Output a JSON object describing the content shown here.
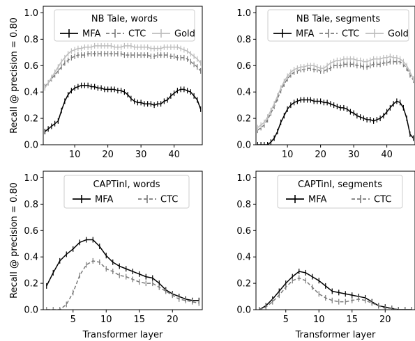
{
  "chart_data": [
    {
      "type": "line",
      "title": "NB Tale, words",
      "xlabel": "",
      "ylabel": "Recall @ precision = 0.80",
      "xlim": [
        0.5,
        48.5
      ],
      "ylim": [
        0,
        1.05
      ],
      "xticks": [
        "10",
        "20",
        "30",
        "40"
      ],
      "yticks": [
        "0.0",
        "0.2",
        "0.4",
        "0.6",
        "0.8",
        "1.0"
      ],
      "legend": "top-left, 3 columns",
      "x": [
        1,
        2,
        3,
        4,
        5,
        6,
        7,
        8,
        9,
        10,
        11,
        12,
        13,
        14,
        15,
        16,
        17,
        18,
        19,
        20,
        21,
        22,
        23,
        24,
        25,
        26,
        27,
        28,
        29,
        30,
        31,
        32,
        33,
        34,
        35,
        36,
        37,
        38,
        39,
        40,
        41,
        42,
        43,
        44,
        45,
        46,
        47,
        48
      ],
      "series": [
        {
          "name": "MFA",
          "color": "#000000",
          "dash": "solid",
          "values": [
            0.1,
            0.12,
            0.14,
            0.16,
            0.18,
            0.26,
            0.33,
            0.38,
            0.41,
            0.43,
            0.44,
            0.45,
            0.45,
            0.45,
            0.44,
            0.44,
            0.43,
            0.43,
            0.42,
            0.42,
            0.42,
            0.42,
            0.41,
            0.41,
            0.4,
            0.38,
            0.35,
            0.33,
            0.32,
            0.32,
            0.31,
            0.31,
            0.31,
            0.3,
            0.31,
            0.31,
            0.33,
            0.34,
            0.37,
            0.39,
            0.41,
            0.42,
            0.42,
            0.41,
            0.4,
            0.37,
            0.34,
            0.27
          ]
        },
        {
          "name": "CTC",
          "color": "#7a7a7a",
          "dash": "dashed",
          "values": [
            0.44,
            0.47,
            0.5,
            0.53,
            0.56,
            0.59,
            0.62,
            0.64,
            0.66,
            0.67,
            0.68,
            0.68,
            0.68,
            0.69,
            0.69,
            0.69,
            0.69,
            0.69,
            0.69,
            0.69,
            0.69,
            0.69,
            0.69,
            0.69,
            0.68,
            0.68,
            0.68,
            0.68,
            0.68,
            0.68,
            0.68,
            0.68,
            0.67,
            0.67,
            0.68,
            0.68,
            0.68,
            0.68,
            0.67,
            0.67,
            0.66,
            0.66,
            0.66,
            0.65,
            0.63,
            0.61,
            0.59,
            0.56
          ]
        },
        {
          "name": "Gold",
          "color": "#bdbdbd",
          "dash": "solid",
          "values": [
            0.43,
            0.47,
            0.51,
            0.55,
            0.59,
            0.63,
            0.66,
            0.69,
            0.71,
            0.72,
            0.73,
            0.73,
            0.74,
            0.74,
            0.74,
            0.75,
            0.75,
            0.75,
            0.75,
            0.75,
            0.75,
            0.74,
            0.74,
            0.74,
            0.75,
            0.75,
            0.75,
            0.74,
            0.74,
            0.74,
            0.74,
            0.74,
            0.73,
            0.73,
            0.73,
            0.73,
            0.74,
            0.74,
            0.74,
            0.74,
            0.74,
            0.73,
            0.72,
            0.71,
            0.69,
            0.67,
            0.65,
            0.62
          ]
        }
      ]
    },
    {
      "type": "line",
      "title": "NB Tale, segments",
      "xlabel": "",
      "ylabel": "",
      "xlim": [
        0.5,
        48.5
      ],
      "ylim": [
        0,
        1.05
      ],
      "xticks": [
        "10",
        "20",
        "30",
        "40"
      ],
      "yticks": [
        "0.0",
        "0.2",
        "0.4",
        "0.6",
        "0.8",
        "1.0"
      ],
      "legend": "top-left, 3 columns",
      "x": [
        1,
        2,
        3,
        4,
        5,
        6,
        7,
        8,
        9,
        10,
        11,
        12,
        13,
        14,
        15,
        16,
        17,
        18,
        19,
        20,
        21,
        22,
        23,
        24,
        25,
        26,
        27,
        28,
        29,
        30,
        31,
        32,
        33,
        34,
        35,
        36,
        37,
        38,
        39,
        40,
        41,
        42,
        43,
        44,
        45,
        46,
        47,
        48
      ],
      "series": [
        {
          "name": "MFA",
          "color": "#000000",
          "dash": "solid",
          "values": [
            0.0,
            0.0,
            0.0,
            0.0,
            0.02,
            0.05,
            0.1,
            0.17,
            0.22,
            0.27,
            0.3,
            0.32,
            0.33,
            0.34,
            0.34,
            0.34,
            0.34,
            0.33,
            0.33,
            0.33,
            0.32,
            0.32,
            0.31,
            0.3,
            0.29,
            0.28,
            0.28,
            0.27,
            0.25,
            0.24,
            0.22,
            0.21,
            0.2,
            0.19,
            0.19,
            0.18,
            0.19,
            0.2,
            0.22,
            0.25,
            0.28,
            0.31,
            0.33,
            0.32,
            0.28,
            0.2,
            0.08,
            0.05
          ]
        },
        {
          "name": "CTC",
          "color": "#7a7a7a",
          "dash": "dashed",
          "values": [
            0.11,
            0.13,
            0.15,
            0.19,
            0.24,
            0.29,
            0.35,
            0.41,
            0.46,
            0.5,
            0.53,
            0.55,
            0.56,
            0.57,
            0.57,
            0.58,
            0.58,
            0.57,
            0.57,
            0.56,
            0.56,
            0.57,
            0.58,
            0.6,
            0.6,
            0.6,
            0.61,
            0.61,
            0.61,
            0.61,
            0.6,
            0.6,
            0.59,
            0.59,
            0.6,
            0.61,
            0.61,
            0.61,
            0.62,
            0.62,
            0.63,
            0.63,
            0.63,
            0.63,
            0.61,
            0.58,
            0.53,
            0.49
          ]
        },
        {
          "name": "Gold",
          "color": "#bdbdbd",
          "dash": "solid",
          "values": [
            0.13,
            0.15,
            0.17,
            0.21,
            0.26,
            0.31,
            0.37,
            0.43,
            0.48,
            0.52,
            0.55,
            0.57,
            0.58,
            0.59,
            0.59,
            0.6,
            0.6,
            0.6,
            0.59,
            0.58,
            0.58,
            0.6,
            0.62,
            0.63,
            0.64,
            0.64,
            0.65,
            0.65,
            0.65,
            0.65,
            0.64,
            0.64,
            0.63,
            0.63,
            0.64,
            0.65,
            0.65,
            0.65,
            0.66,
            0.66,
            0.67,
            0.66,
            0.66,
            0.65,
            0.63,
            0.6,
            0.55,
            0.5
          ]
        }
      ]
    },
    {
      "type": "line",
      "title": "CAPTinI, words",
      "xlabel": "Transformer layer",
      "ylabel": "Recall @ precision = 0.80",
      "xlim": [
        0.5,
        24.5
      ],
      "ylim": [
        0,
        1.05
      ],
      "xticks": [
        "5",
        "10",
        "15",
        "20"
      ],
      "yticks": [
        "0.0",
        "0.2",
        "0.4",
        "0.6",
        "0.8",
        "1.0"
      ],
      "legend": "top-center, 2 columns",
      "x": [
        1,
        2,
        3,
        4,
        5,
        6,
        7,
        8,
        9,
        10,
        11,
        12,
        13,
        14,
        15,
        16,
        17,
        18,
        19,
        20,
        21,
        22,
        23,
        24
      ],
      "series": [
        {
          "name": "MFA",
          "color": "#000000",
          "dash": "solid",
          "values": [
            0.18,
            0.28,
            0.37,
            0.42,
            0.46,
            0.51,
            0.53,
            0.53,
            0.48,
            0.41,
            0.36,
            0.33,
            0.31,
            0.29,
            0.27,
            0.25,
            0.24,
            0.2,
            0.15,
            0.12,
            0.1,
            0.08,
            0.07,
            0.07
          ]
        },
        {
          "name": "CTC",
          "color": "#7a7a7a",
          "dash": "dashed",
          "values": [
            0.0,
            0.0,
            0.0,
            0.04,
            0.13,
            0.26,
            0.34,
            0.37,
            0.36,
            0.31,
            0.29,
            0.26,
            0.25,
            0.23,
            0.21,
            0.2,
            0.2,
            0.17,
            0.14,
            0.11,
            0.08,
            0.07,
            0.06,
            0.05
          ]
        }
      ]
    },
    {
      "type": "line",
      "title": "CAPTinI, segments",
      "xlabel": "Transformer layer",
      "ylabel": "",
      "xlim": [
        0.5,
        24.5
      ],
      "ylim": [
        0,
        1.05
      ],
      "xticks": [
        "5",
        "10",
        "15",
        "20"
      ],
      "yticks": [
        "0.0",
        "0.2",
        "0.4",
        "0.6",
        "0.8",
        "1.0"
      ],
      "legend": "top-center, 2 columns",
      "x": [
        1,
        2,
        3,
        4,
        5,
        6,
        7,
        8,
        9,
        10,
        11,
        12,
        13,
        14,
        15,
        16,
        17,
        18,
        19,
        20,
        21,
        22,
        23,
        24
      ],
      "series": [
        {
          "name": "MFA",
          "color": "#000000",
          "dash": "solid",
          "values": [
            0.0,
            0.03,
            0.08,
            0.14,
            0.2,
            0.25,
            0.29,
            0.28,
            0.25,
            0.22,
            0.18,
            0.14,
            0.13,
            0.12,
            0.11,
            0.1,
            0.09,
            0.06,
            0.03,
            0.02,
            0.01,
            0.0,
            0.0,
            0.0
          ]
        },
        {
          "name": "CTC",
          "color": "#7a7a7a",
          "dash": "dashed",
          "values": [
            0.0,
            0.02,
            0.06,
            0.11,
            0.17,
            0.22,
            0.24,
            0.22,
            0.17,
            0.12,
            0.09,
            0.07,
            0.06,
            0.06,
            0.07,
            0.08,
            0.07,
            0.05,
            0.03,
            0.01,
            0.01,
            0.0,
            0.0,
            0.0
          ]
        }
      ]
    }
  ]
}
